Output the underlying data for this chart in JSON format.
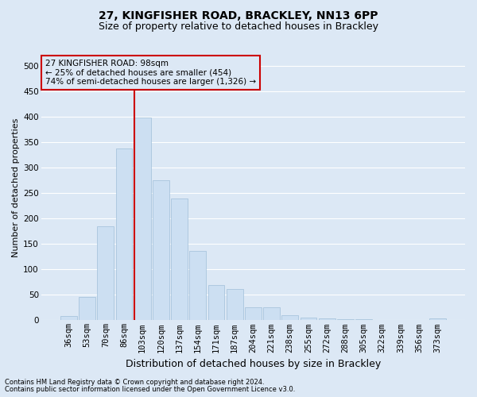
{
  "title1": "27, KINGFISHER ROAD, BRACKLEY, NN13 6PP",
  "title2": "Size of property relative to detached houses in Brackley",
  "xlabel": "Distribution of detached houses by size in Brackley",
  "ylabel": "Number of detached properties",
  "categories": [
    "36sqm",
    "53sqm",
    "70sqm",
    "86sqm",
    "103sqm",
    "120sqm",
    "137sqm",
    "154sqm",
    "171sqm",
    "187sqm",
    "204sqm",
    "221sqm",
    "238sqm",
    "255sqm",
    "272sqm",
    "288sqm",
    "305sqm",
    "322sqm",
    "339sqm",
    "356sqm",
    "373sqm"
  ],
  "values": [
    8,
    46,
    184,
    338,
    398,
    275,
    240,
    136,
    70,
    62,
    25,
    25,
    10,
    5,
    3,
    2,
    2,
    1,
    1,
    0,
    4
  ],
  "bar_color": "#ccdff2",
  "bar_edge_color": "#a0bfd8",
  "vline_color": "#cc0000",
  "vline_index": 3.55,
  "ylim": [
    0,
    520
  ],
  "yticks": [
    0,
    50,
    100,
    150,
    200,
    250,
    300,
    350,
    400,
    450,
    500
  ],
  "annotation_line1": "27 KINGFISHER ROAD: 98sqm",
  "annotation_line2": "← 25% of detached houses are smaller (454)",
  "annotation_line3": "74% of semi-detached houses are larger (1,326) →",
  "annotation_box_edgecolor": "#cc0000",
  "footnote1": "Contains HM Land Registry data © Crown copyright and database right 2024.",
  "footnote2": "Contains public sector information licensed under the Open Government Licence v3.0.",
  "bg_color": "#dce8f5",
  "grid_color": "#ffffff",
  "title_fontsize": 10,
  "subtitle_fontsize": 9,
  "ylabel_fontsize": 8,
  "xlabel_fontsize": 9,
  "tick_fontsize": 7.5,
  "annot_fontsize": 7.5,
  "footnote_fontsize": 6
}
